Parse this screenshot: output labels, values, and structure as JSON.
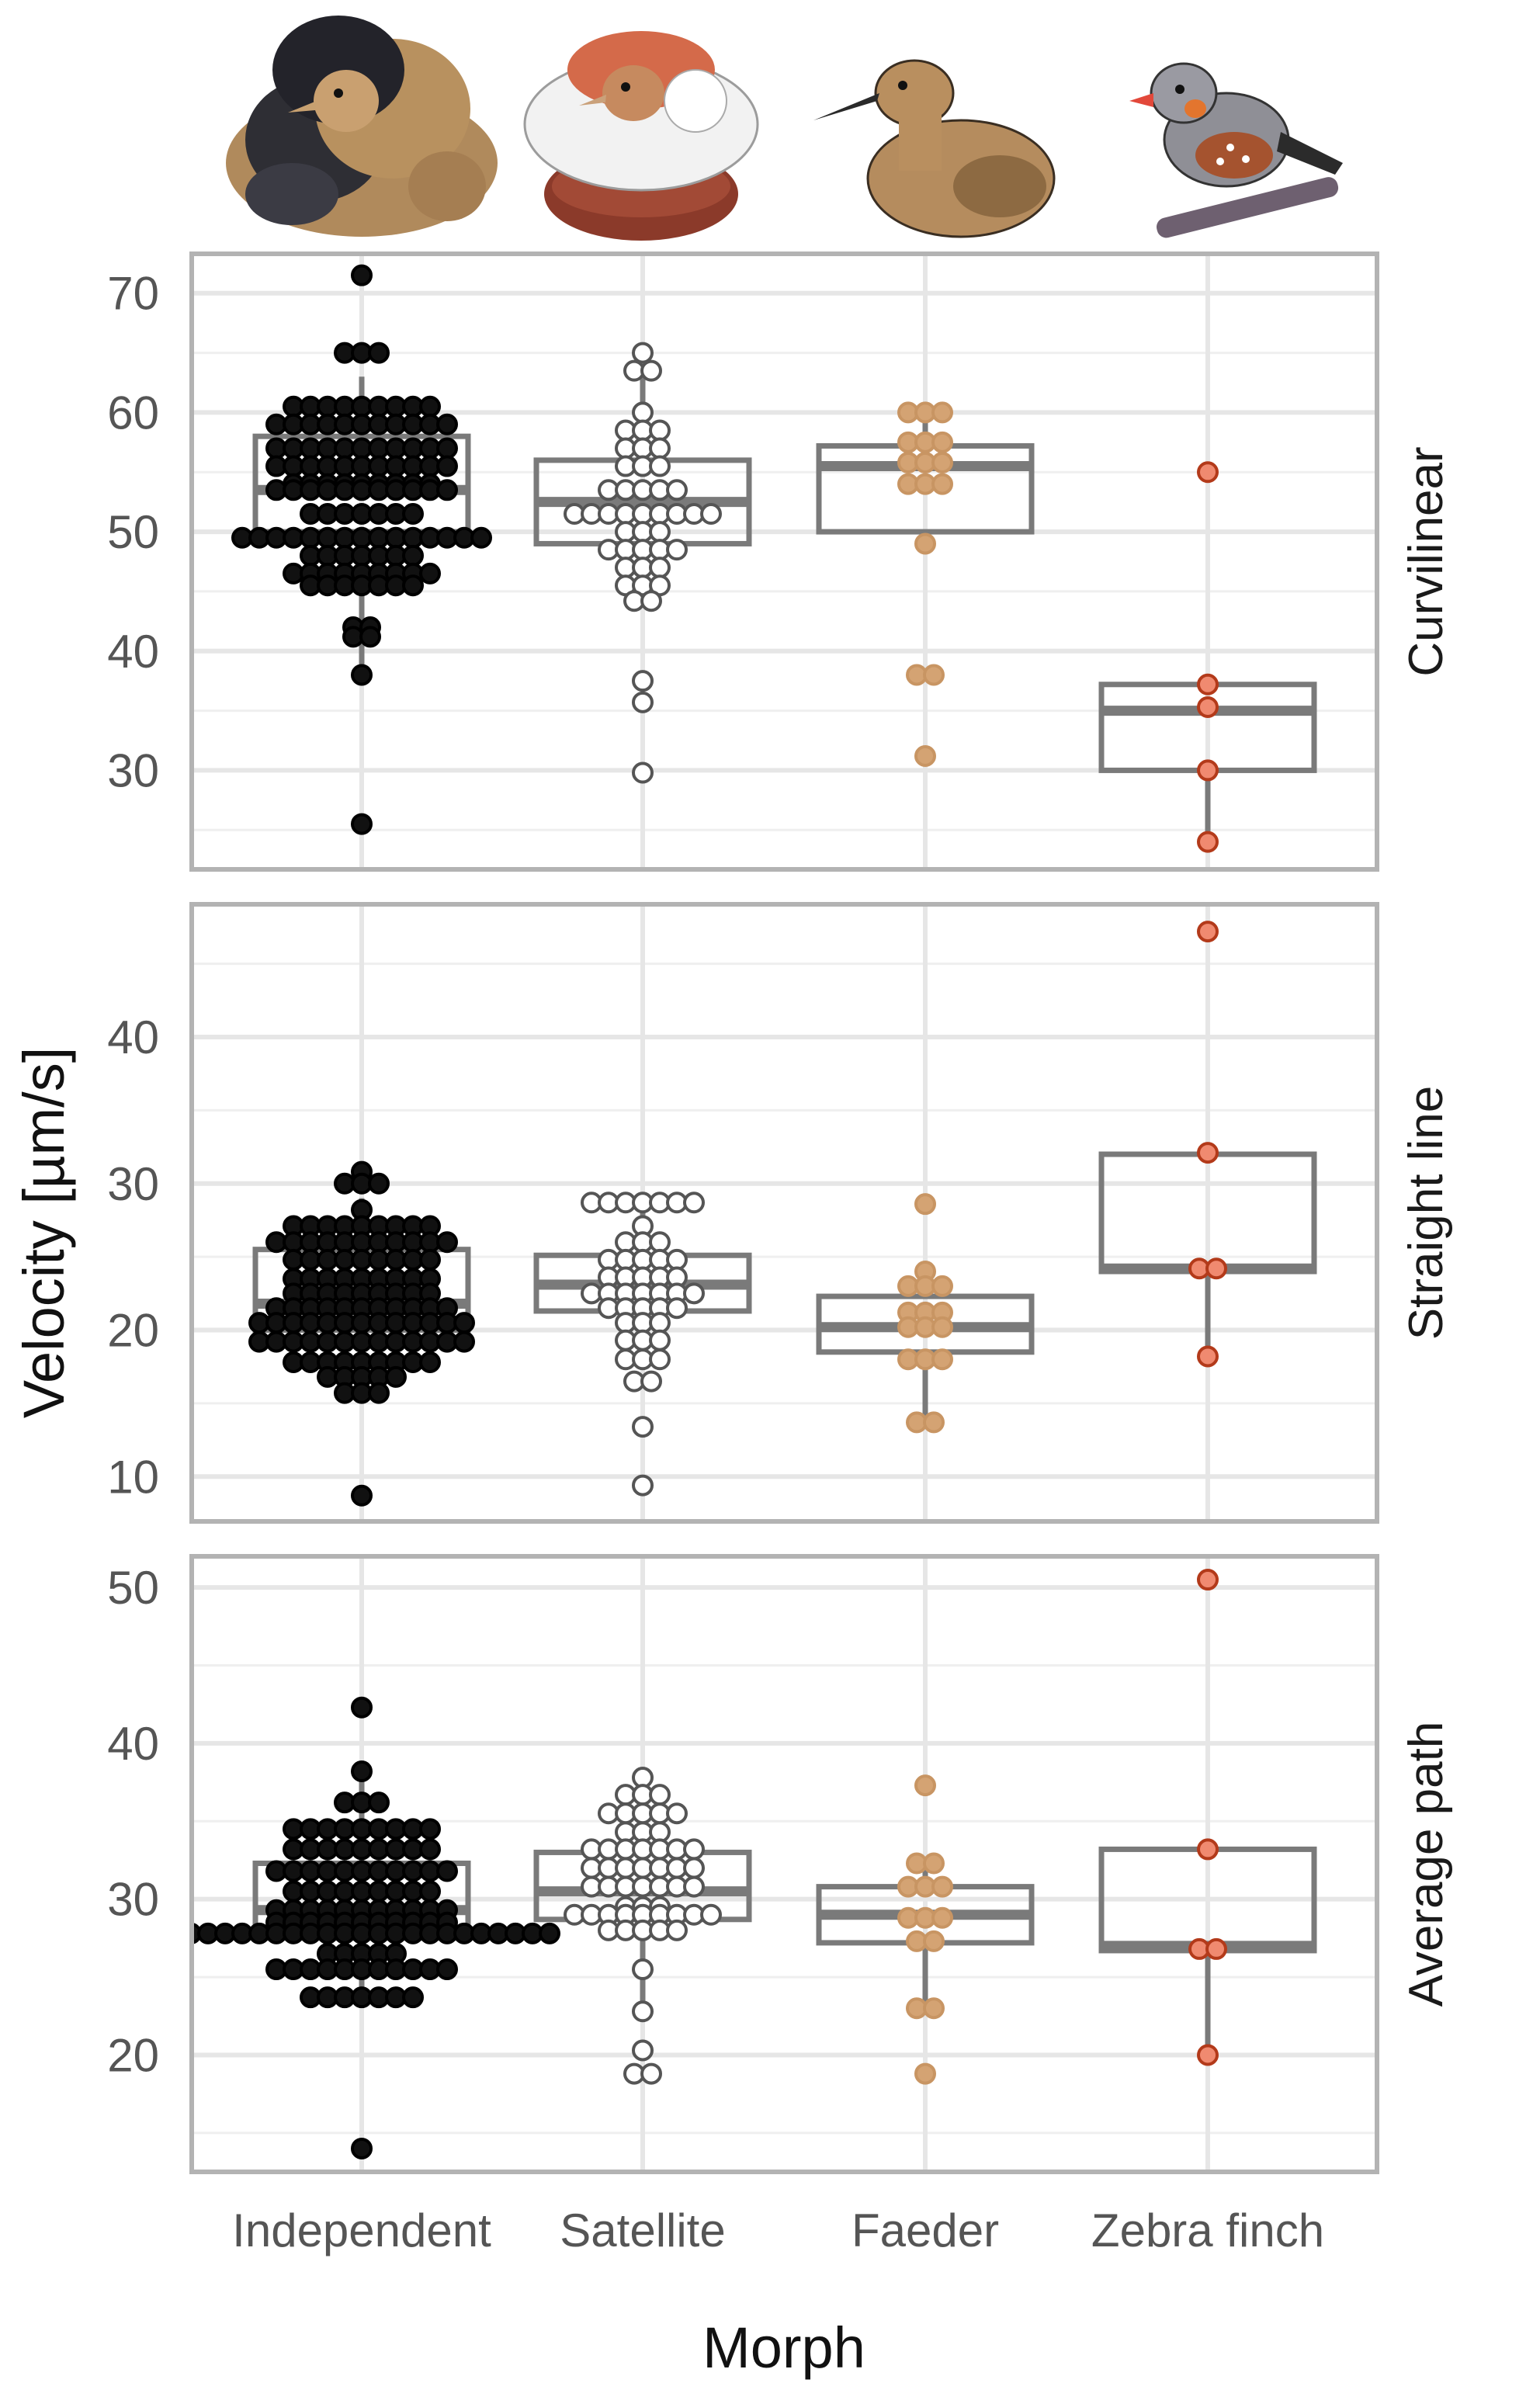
{
  "chart_data": {
    "type": "boxplot_dotplot",
    "ylabel": "Velocity [µm/s]",
    "xlabel": "Morph",
    "categories": [
      "Independent",
      "Satellite",
      "Faeder",
      "Zebra finch"
    ],
    "category_icons": [
      "independent-ruff-bird-icon",
      "satellite-ruff-bird-icon",
      "faeder-ruff-bird-icon",
      "zebra-finch-bird-icon"
    ],
    "colors": {
      "Independent": "#111111",
      "Satellite": "#ffffff",
      "Faeder": "#d4a373",
      "Zebra finch": "#f08a70",
      "satellite_stroke": "#555555",
      "faeder_stroke": "#c89563",
      "zebra_stroke": "#b33a1a"
    },
    "panels": [
      {
        "name": "Curvilinear",
        "ylim": [
          23,
          72
        ],
        "yticks": [
          30,
          40,
          50,
          60,
          70
        ],
        "tick_labels": [
          "30",
          "40",
          "50",
          "60",
          "70"
        ],
        "boxes": [
          {
            "category": "Independent",
            "q1": 50,
            "median": 53.5,
            "q3": 58,
            "whisker_low": 38,
            "whisker_high": 63
          },
          {
            "category": "Satellite",
            "q1": 49,
            "median": 52.5,
            "q3": 56,
            "whisker_low": 44,
            "whisker_high": 63
          },
          {
            "category": "Faeder",
            "q1": 50,
            "median": 55.5,
            "q3": 57.2,
            "whisker_low": 49,
            "whisker_high": 60
          },
          {
            "category": "Zebra finch",
            "q1": 30,
            "median": 35,
            "q3": 37.2,
            "whisker_low": 24,
            "whisker_high": 37.2
          }
        ],
        "points": [
          {
            "category": "Independent",
            "rows": [
              {
                "value": 71.5,
                "count": 1
              },
              {
                "value": 65,
                "count": 3
              },
              {
                "value": 60.5,
                "count": 9
              },
              {
                "value": 59,
                "count": 11
              },
              {
                "value": 57,
                "count": 11
              },
              {
                "value": 55.5,
                "count": 11
              },
              {
                "value": 54,
                "count": 9
              },
              {
                "value": 53.5,
                "count": 11
              },
              {
                "value": 51.5,
                "count": 7
              },
              {
                "value": 49.5,
                "count": 15
              },
              {
                "value": 48,
                "count": 7
              },
              {
                "value": 46.5,
                "count": 9
              },
              {
                "value": 45.5,
                "count": 7
              },
              {
                "value": 42,
                "count": 2
              },
              {
                "value": 41.2,
                "count": 2
              },
              {
                "value": 38,
                "count": 1
              },
              {
                "value": 25.5,
                "count": 1
              }
            ]
          },
          {
            "category": "Satellite",
            "rows": [
              {
                "value": 65,
                "count": 1
              },
              {
                "value": 63.5,
                "count": 2
              },
              {
                "value": 60,
                "count": 1
              },
              {
                "value": 58.5,
                "count": 3
              },
              {
                "value": 57,
                "count": 3
              },
              {
                "value": 55.5,
                "count": 3
              },
              {
                "value": 53.5,
                "count": 5
              },
              {
                "value": 51.5,
                "count": 9
              },
              {
                "value": 50,
                "count": 3
              },
              {
                "value": 48.5,
                "count": 5
              },
              {
                "value": 47,
                "count": 3
              },
              {
                "value": 45.5,
                "count": 3
              },
              {
                "value": 44.2,
                "count": 2
              },
              {
                "value": 37.5,
                "count": 1
              },
              {
                "value": 35.7,
                "count": 1
              },
              {
                "value": 29.8,
                "count": 1
              }
            ]
          },
          {
            "category": "Faeder",
            "rows": [
              {
                "value": 60,
                "count": 3
              },
              {
                "value": 57.5,
                "count": 3
              },
              {
                "value": 55.8,
                "count": 3
              },
              {
                "value": 54,
                "count": 3
              },
              {
                "value": 49,
                "count": 1
              },
              {
                "value": 38,
                "count": 2
              },
              {
                "value": 31.2,
                "count": 1
              }
            ]
          },
          {
            "category": "Zebra finch",
            "rows": [
              {
                "value": 55,
                "count": 1
              },
              {
                "value": 37.2,
                "count": 1
              },
              {
                "value": 35.3,
                "count": 1
              },
              {
                "value": 30,
                "count": 1
              },
              {
                "value": 24,
                "count": 1
              }
            ]
          }
        ]
      },
      {
        "name": "Straight line",
        "ylim": [
          8,
          48
        ],
        "yticks": [
          10,
          20,
          30,
          40
        ],
        "tick_labels": [
          "10",
          "20",
          "30",
          "40"
        ],
        "boxes": [
          {
            "category": "Independent",
            "q1": 20,
            "median": 21.8,
            "q3": 25.5,
            "whisker_low": 16,
            "whisker_high": 29
          },
          {
            "category": "Satellite",
            "q1": 21.3,
            "median": 23.1,
            "q3": 25.1,
            "whisker_low": 18,
            "whisker_high": 28.5
          },
          {
            "category": "Faeder",
            "q1": 18.5,
            "median": 20.2,
            "q3": 22.3,
            "whisker_low": 14,
            "whisker_high": 24
          },
          {
            "category": "Zebra finch",
            "q1": 24,
            "median": 24.2,
            "q3": 32,
            "whisker_low": 18.2,
            "whisker_high": 32
          }
        ],
        "points": [
          {
            "category": "Independent",
            "rows": [
              {
                "value": 30.8,
                "count": 1
              },
              {
                "value": 30,
                "count": 3
              },
              {
                "value": 28.2,
                "count": 1
              },
              {
                "value": 27.1,
                "count": 9
              },
              {
                "value": 26,
                "count": 11
              },
              {
                "value": 24.8,
                "count": 9
              },
              {
                "value": 23.5,
                "count": 9
              },
              {
                "value": 22.5,
                "count": 9
              },
              {
                "value": 21.5,
                "count": 11
              },
              {
                "value": 20.5,
                "count": 13
              },
              {
                "value": 19.2,
                "count": 13
              },
              {
                "value": 17.8,
                "count": 9
              },
              {
                "value": 16.8,
                "count": 5
              },
              {
                "value": 15.7,
                "count": 3
              },
              {
                "value": 8.7,
                "count": 1
              }
            ]
          },
          {
            "category": "Satellite",
            "rows": [
              {
                "value": 28.7,
                "count": 7
              },
              {
                "value": 27.1,
                "count": 1
              },
              {
                "value": 26,
                "count": 3
              },
              {
                "value": 24.8,
                "count": 5
              },
              {
                "value": 23.6,
                "count": 5
              },
              {
                "value": 22.5,
                "count": 7
              },
              {
                "value": 21.5,
                "count": 5
              },
              {
                "value": 20.5,
                "count": 3
              },
              {
                "value": 19.3,
                "count": 3
              },
              {
                "value": 18,
                "count": 3
              },
              {
                "value": 16.5,
                "count": 2
              },
              {
                "value": 13.4,
                "count": 1
              },
              {
                "value": 9.4,
                "count": 1
              }
            ]
          },
          {
            "category": "Faeder",
            "rows": [
              {
                "value": 28.6,
                "count": 1
              },
              {
                "value": 24,
                "count": 1
              },
              {
                "value": 23,
                "count": 3
              },
              {
                "value": 21.2,
                "count": 3
              },
              {
                "value": 20.2,
                "count": 3
              },
              {
                "value": 18,
                "count": 3
              },
              {
                "value": 13.7,
                "count": 2
              }
            ]
          },
          {
            "category": "Zebra finch",
            "rows": [
              {
                "value": 47.2,
                "count": 1
              },
              {
                "value": 32.1,
                "count": 1
              },
              {
                "value": 24.2,
                "count": 2
              },
              {
                "value": 18.2,
                "count": 1
              }
            ]
          }
        ]
      },
      {
        "name": "Average path",
        "ylim": [
          13.5,
          51
        ],
        "yticks": [
          20,
          30,
          40,
          50
        ],
        "tick_labels": [
          "20",
          "30",
          "40",
          "50"
        ],
        "boxes": [
          {
            "category": "Independent",
            "q1": 27.5,
            "median": 29.3,
            "q3": 32.3,
            "whisker_low": 24,
            "whisker_high": 38
          },
          {
            "category": "Satellite",
            "q1": 28.7,
            "median": 30.5,
            "q3": 33,
            "whisker_low": 23,
            "whisker_high": 37.5
          },
          {
            "category": "Faeder",
            "q1": 27.2,
            "median": 29,
            "q3": 30.8,
            "whisker_low": 23,
            "whisker_high": 32
          },
          {
            "category": "Zebra finch",
            "q1": 26.7,
            "median": 27,
            "q3": 33.2,
            "whisker_low": 20,
            "whisker_high": 33.2
          }
        ],
        "points": [
          {
            "category": "Independent",
            "rows": [
              {
                "value": 42.3,
                "count": 1
              },
              {
                "value": 38.2,
                "count": 1
              },
              {
                "value": 36.2,
                "count": 3
              },
              {
                "value": 34.5,
                "count": 9
              },
              {
                "value": 33.2,
                "count": 9
              },
              {
                "value": 31.8,
                "count": 11
              },
              {
                "value": 30.5,
                "count": 9
              },
              {
                "value": 29.3,
                "count": 11
              },
              {
                "value": 28.5,
                "count": 11
              },
              {
                "value": 27.8,
                "count": 23
              },
              {
                "value": 26.5,
                "count": 5
              },
              {
                "value": 25.5,
                "count": 11
              },
              {
                "value": 23.7,
                "count": 7
              },
              {
                "value": 14,
                "count": 1
              }
            ]
          },
          {
            "category": "Satellite",
            "rows": [
              {
                "value": 37.8,
                "count": 1
              },
              {
                "value": 36.7,
                "count": 3
              },
              {
                "value": 35.5,
                "count": 5
              },
              {
                "value": 34.3,
                "count": 3
              },
              {
                "value": 33.2,
                "count": 7
              },
              {
                "value": 32,
                "count": 7
              },
              {
                "value": 30.8,
                "count": 7
              },
              {
                "value": 29.5,
                "count": 3
              },
              {
                "value": 29,
                "count": 9
              },
              {
                "value": 28,
                "count": 5
              },
              {
                "value": 25.5,
                "count": 1
              },
              {
                "value": 22.8,
                "count": 1
              },
              {
                "value": 20.3,
                "count": 1
              },
              {
                "value": 18.8,
                "count": 2
              }
            ]
          },
          {
            "category": "Faeder",
            "rows": [
              {
                "value": 37.3,
                "count": 1
              },
              {
                "value": 32.3,
                "count": 2
              },
              {
                "value": 30.8,
                "count": 3
              },
              {
                "value": 28.8,
                "count": 3
              },
              {
                "value": 27.3,
                "count": 2
              },
              {
                "value": 23,
                "count": 2
              },
              {
                "value": 18.8,
                "count": 1
              }
            ]
          },
          {
            "category": "Zebra finch",
            "rows": [
              {
                "value": 50.5,
                "count": 1
              },
              {
                "value": 33.2,
                "count": 1
              },
              {
                "value": 26.8,
                "count": 2
              },
              {
                "value": 20,
                "count": 1
              }
            ]
          }
        ]
      }
    ]
  }
}
